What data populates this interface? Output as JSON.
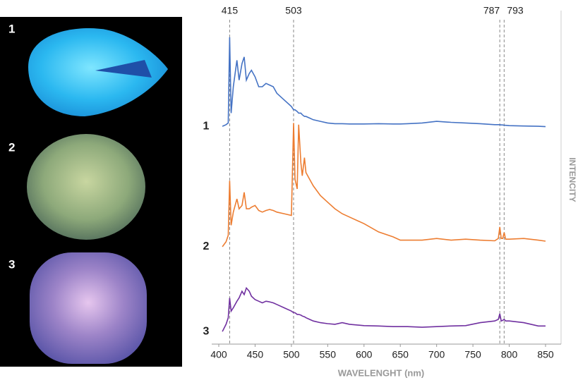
{
  "chart_data": {
    "type": "line",
    "xlabel": "WAVELENGHT (nm)",
    "ylabel": "INTENCITY",
    "xlim": [
      400,
      850
    ],
    "xticks": [
      400,
      450,
      500,
      550,
      600,
      650,
      700,
      750,
      800,
      850
    ],
    "ylim": [
      0,
      100
    ],
    "vlines": [
      415,
      503,
      787,
      793
    ],
    "x": [
      405,
      410,
      413,
      415,
      417,
      420,
      425,
      428,
      432,
      435,
      438,
      442,
      445,
      450,
      455,
      460,
      465,
      470,
      475,
      480,
      490,
      500,
      503,
      505,
      508,
      510,
      513,
      515,
      518,
      520,
      525,
      530,
      540,
      550,
      560,
      570,
      580,
      600,
      620,
      640,
      650,
      660,
      680,
      700,
      720,
      740,
      760,
      780,
      785,
      787,
      789,
      791,
      793,
      795,
      800,
      820,
      840,
      850
    ],
    "series": [
      {
        "name": "1",
        "color": "#4472c4",
        "values": [
          66,
          66.5,
          67,
          93,
          70,
          78,
          86,
          80,
          85,
          87,
          80,
          82,
          83,
          81,
          78,
          78,
          79,
          78.5,
          78,
          76,
          74,
          72,
          71,
          71,
          70.5,
          70,
          70,
          69.5,
          69,
          69,
          68.5,
          68,
          67.5,
          67,
          66.8,
          66.8,
          66.7,
          66.7,
          66.8,
          66.7,
          66.7,
          66.8,
          67,
          67.5,
          67.2,
          67,
          66.8,
          66.5,
          66.5,
          66.5,
          66.4,
          66.4,
          66.3,
          66.3,
          66.2,
          66.1,
          66,
          65.9
        ]
      },
      {
        "name": "2",
        "color": "#ed7d31",
        "values": [
          29.5,
          31,
          33,
          49.5,
          36,
          40,
          44,
          41,
          42,
          46,
          41,
          41,
          41.5,
          42,
          40.5,
          40,
          40.5,
          40.8,
          40.5,
          40,
          39.5,
          39,
          67,
          50,
          47,
          66.5,
          55,
          51,
          56.5,
          52,
          50,
          48,
          45,
          43,
          41,
          39.5,
          38.5,
          36.5,
          34,
          32.5,
          31.5,
          31.5,
          31.5,
          32,
          31.5,
          31.8,
          31.5,
          31.3,
          32,
          35.5,
          32,
          32,
          33.8,
          31.8,
          31.8,
          32,
          31.5,
          31.2
        ]
      },
      {
        "name": "3",
        "color": "#7030a0",
        "values": [
          3.8,
          6,
          8,
          14,
          10,
          11,
          13,
          14,
          16,
          15,
          17,
          16,
          14.5,
          13.5,
          13,
          12.5,
          13,
          12.8,
          12.5,
          12,
          11,
          10,
          9.5,
          9.5,
          9,
          9,
          8.8,
          8.5,
          8.3,
          8,
          7.5,
          7,
          6.5,
          6.2,
          6,
          6.5,
          6,
          5.6,
          5.5,
          5.3,
          5.3,
          5.3,
          5.1,
          5.3,
          5.5,
          5.6,
          6.5,
          7,
          7.5,
          9.2,
          7,
          7.2,
          7.5,
          7,
          7,
          6.5,
          5.5,
          5.5
        ]
      }
    ]
  },
  "images": {
    "labels": [
      "1",
      "2",
      "3"
    ]
  }
}
